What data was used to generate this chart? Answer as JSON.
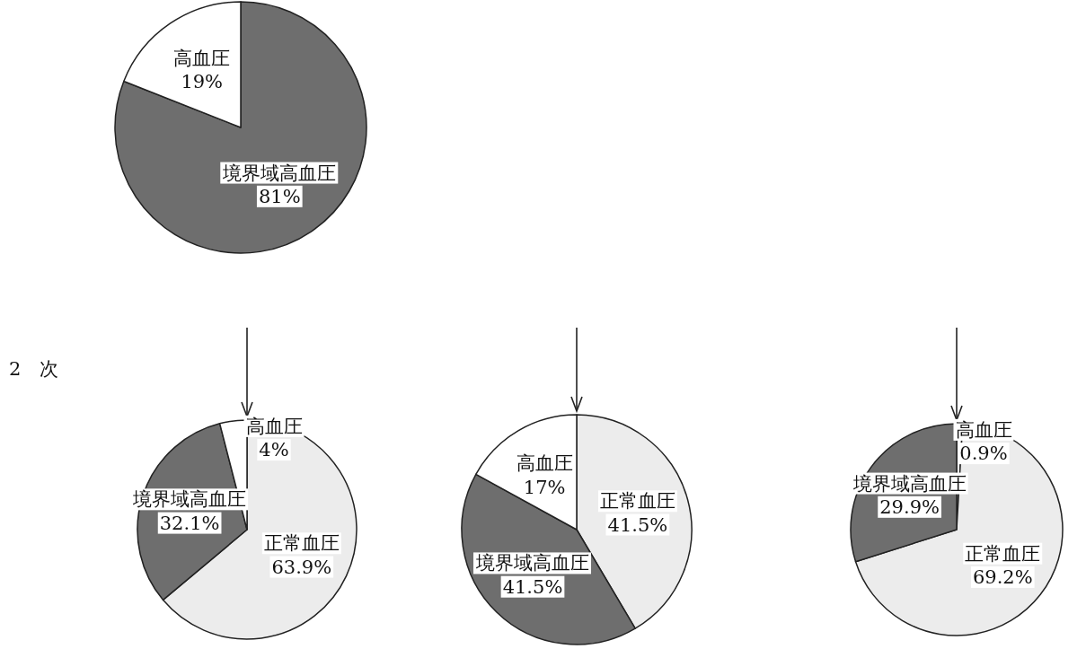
{
  "chart_data": [
    {
      "type": "pie",
      "categories": [
        "境界域高血圧",
        "高血圧"
      ],
      "values": [
        81,
        19
      ],
      "colors": [
        "#6e6e6e",
        "#ffffff"
      ],
      "value_labels": [
        "81%",
        "19%"
      ],
      "annotations": [
        "2　次"
      ]
    },
    {
      "type": "pie",
      "categories": [
        "正常血圧",
        "境界域高血圧",
        "高血圧"
      ],
      "values": [
        63.9,
        32.1,
        4
      ],
      "colors": [
        "#ececec",
        "#6e6e6e",
        "#ffffff"
      ],
      "value_labels": [
        "63.9%",
        "32.1%",
        "4%"
      ]
    },
    {
      "type": "pie",
      "categories": [
        "正常血圧",
        "境界域高血圧",
        "高血圧"
      ],
      "values": [
        41.5,
        41.5,
        17
      ],
      "colors": [
        "#ececec",
        "#6e6e6e",
        "#ffffff"
      ],
      "value_labels": [
        "41.5%",
        "41.5%",
        "17%"
      ]
    },
    {
      "type": "pie",
      "categories": [
        "高血圧",
        "正常血圧",
        "境界域高血圧"
      ],
      "values": [
        0.9,
        69.2,
        29.9
      ],
      "colors": [
        "#ffffff",
        "#ececec",
        "#6e6e6e"
      ],
      "value_labels": [
        "0.9%",
        "69.2%",
        "29.9%"
      ]
    }
  ]
}
